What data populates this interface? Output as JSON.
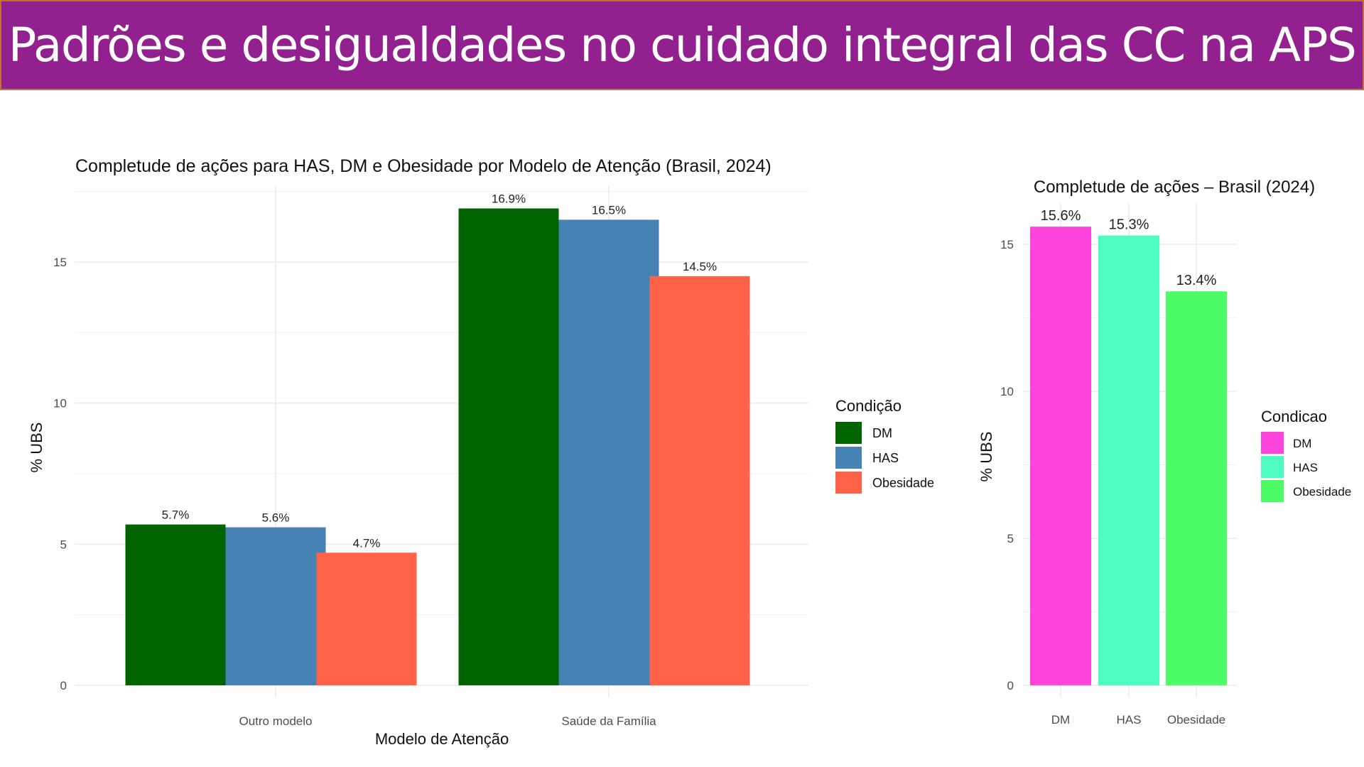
{
  "slide": {
    "title": "Padrões e desigualdades no cuidado integral das CC na APS",
    "banner_color": "#92208f"
  },
  "chart_data": [
    {
      "id": "left",
      "type": "bar",
      "title": "Completude de ações para HAS, DM e Obesidade por Modelo de Atenção (Brasil, 2024)",
      "xlabel": "Modelo de Atenção",
      "ylabel": "% UBS",
      "categories": [
        "Outro modelo",
        "Saúde da Família"
      ],
      "series": [
        {
          "name": "DM",
          "color": "#006400",
          "values": [
            5.7,
            16.9
          ],
          "labels": [
            "5.7%",
            "16.9%"
          ]
        },
        {
          "name": "HAS",
          "color": "#4682b4",
          "values": [
            5.6,
            16.5
          ],
          "labels": [
            "5.6%",
            "16.5%"
          ]
        },
        {
          "name": "Obesidade",
          "color": "#ff6347",
          "values": [
            4.7,
            14.5
          ],
          "labels": [
            "4.7%",
            "14.5%"
          ]
        }
      ],
      "ylim": [
        0,
        17.5
      ],
      "yticks": [
        0,
        5,
        10,
        15
      ],
      "grid": true,
      "legend": {
        "title": "Condição",
        "position": "right"
      }
    },
    {
      "id": "right",
      "type": "bar",
      "title": "Completude de ações – Brasil (2024)",
      "xlabel": "",
      "ylabel": "% UBS",
      "categories": [
        "DM",
        "HAS",
        "Obesidade"
      ],
      "values": [
        15.6,
        15.3,
        13.4
      ],
      "labels": [
        "15.6%",
        "15.3%",
        "13.4%"
      ],
      "colors": [
        "#ff44dd",
        "#4dfcbf",
        "#4cfc64"
      ],
      "ylim": [
        0,
        16.5
      ],
      "yticks": [
        0,
        5,
        10,
        15
      ],
      "grid": true,
      "legend": {
        "title": "Condicao",
        "position": "right",
        "items": [
          "DM",
          "HAS",
          "Obesidade"
        ]
      }
    }
  ]
}
